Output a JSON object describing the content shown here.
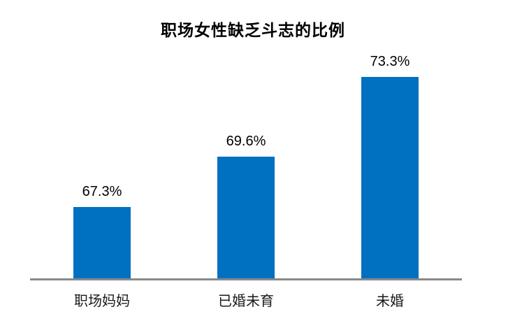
{
  "title": "职场女性缺乏斗志的比例",
  "colors": {
    "bar": "#0070C0",
    "axis_line": "#898989",
    "title_text": "#000000",
    "label_text": "#1a1a1a"
  },
  "chart_data": {
    "type": "bar",
    "title": "职场女性缺乏斗志的比例",
    "categories": [
      "职场妈妈",
      "已婚未育",
      "未婚"
    ],
    "values": [
      67.3,
      69.6,
      73.3
    ],
    "data_labels": [
      "67.3%",
      "69.6%",
      "73.3%"
    ],
    "xlabel": "",
    "ylabel": "",
    "ylim": [
      64,
      75
    ],
    "grid": false,
    "legend": false,
    "y_axis_labels_visible": false,
    "data_labels_visible": true
  }
}
